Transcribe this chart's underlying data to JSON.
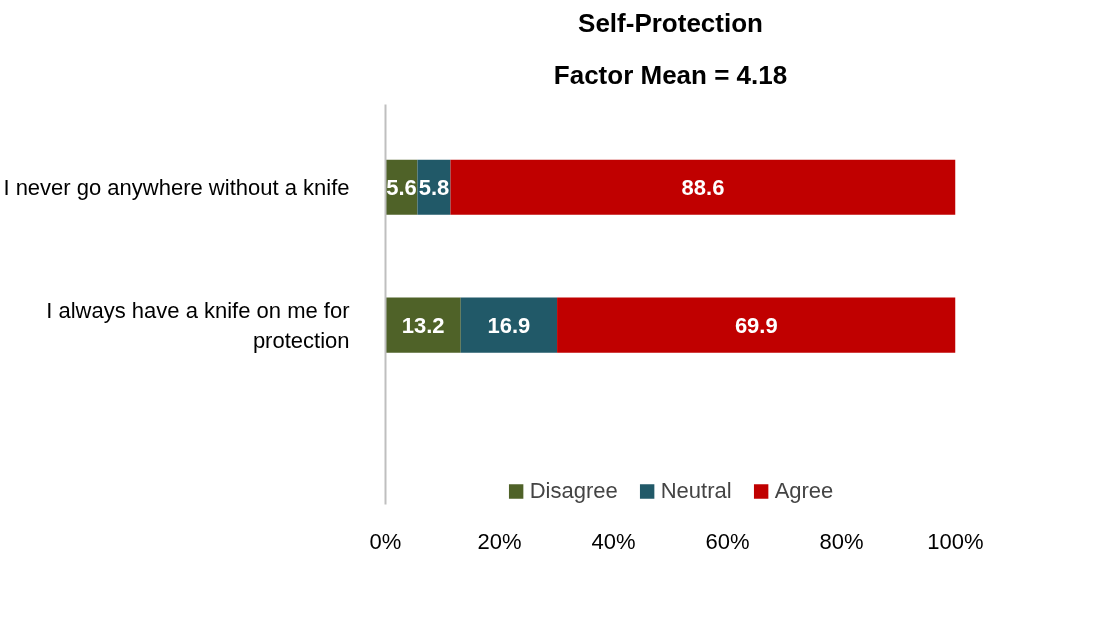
{
  "chart_data": {
    "type": "bar",
    "orientation": "horizontal",
    "stacked": true,
    "title": "Self-Protection",
    "subtitle": "Factor Mean = 4.18",
    "categories": [
      "I never go anywhere without a knife",
      "I always have a knife on me for protection"
    ],
    "series": [
      {
        "name": "Disagree",
        "color": "#4f6228",
        "values": [
          5.6,
          13.2
        ]
      },
      {
        "name": "Neutral",
        "color": "#215968",
        "values": [
          5.8,
          16.9
        ]
      },
      {
        "name": "Agree",
        "color": "#c00000",
        "values": [
          88.6,
          69.9
        ]
      }
    ],
    "xlim": [
      0,
      100
    ],
    "xticks": [
      {
        "value": 0,
        "label": "0%"
      },
      {
        "value": 20,
        "label": "20%"
      },
      {
        "value": 40,
        "label": "40%"
      },
      {
        "value": 60,
        "label": "60%"
      },
      {
        "value": 80,
        "label": "80%"
      },
      {
        "value": 100,
        "label": "100%"
      }
    ],
    "data_labels": true,
    "legend": "bottom",
    "grid": false
  }
}
